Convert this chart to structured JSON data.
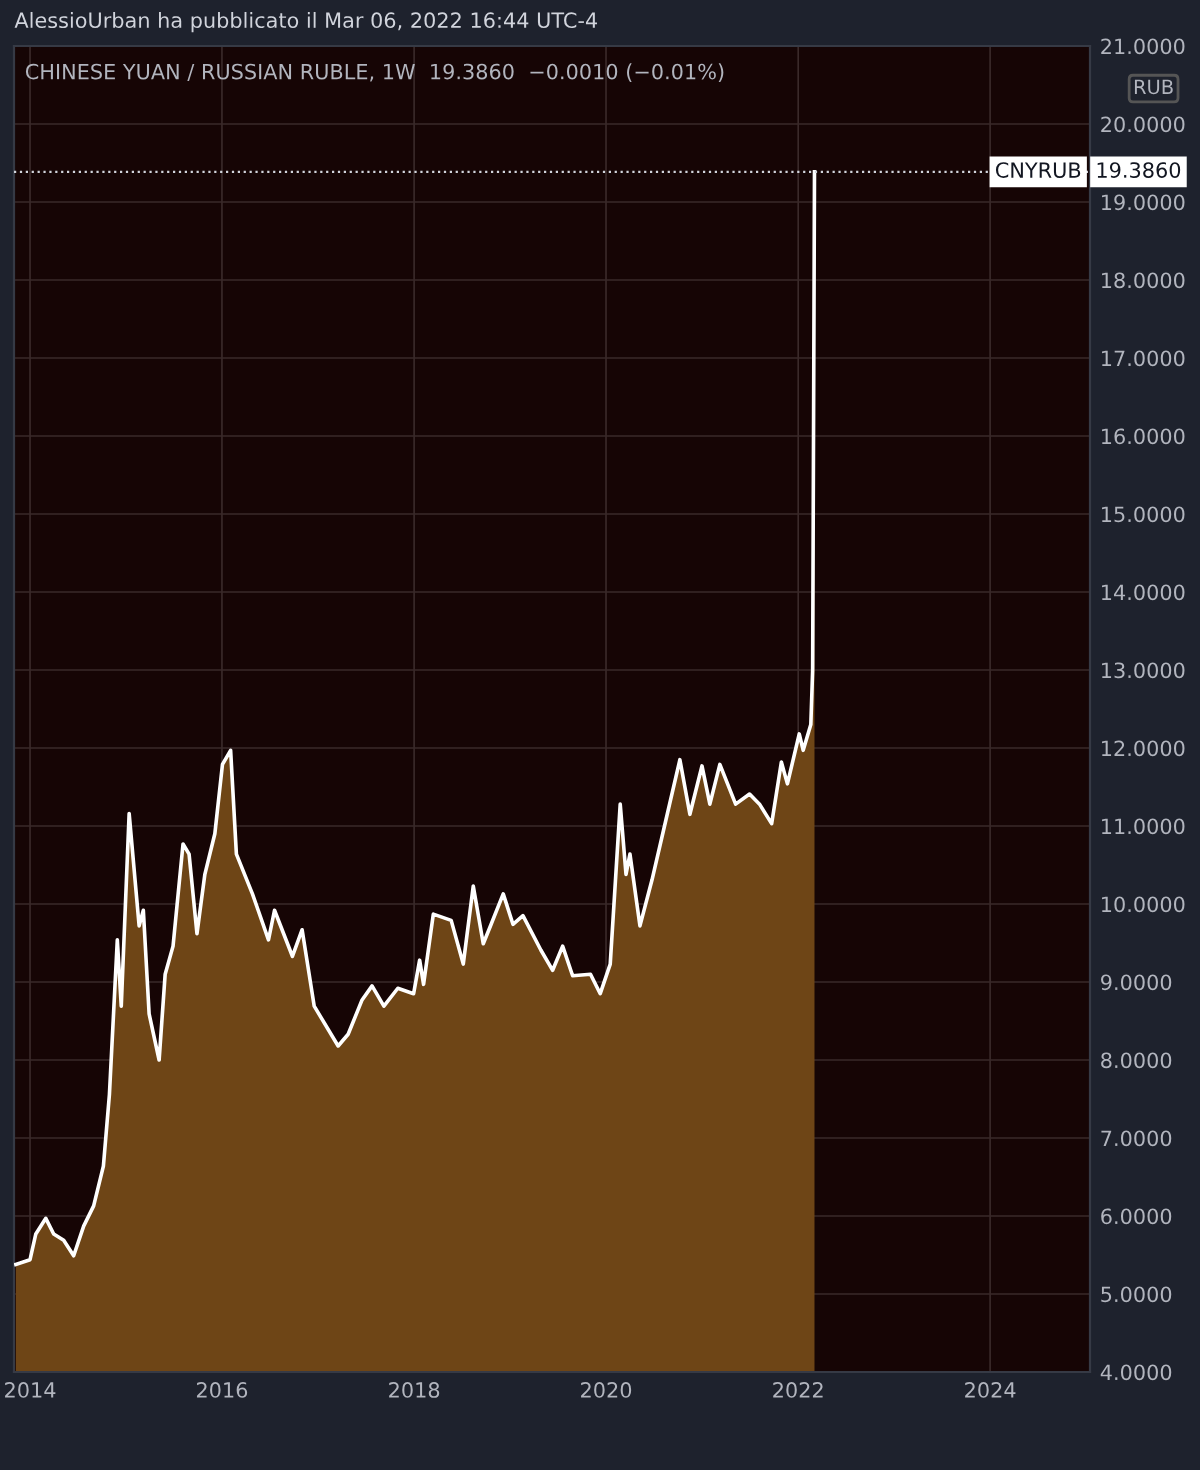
{
  "chart_data": {
    "type": "area",
    "title": "CHINESE YUAN / RUSSIAN RUBLE, 1W",
    "subtitle": "19.3860  −0.0010 (−0.01%)",
    "ylabel": "RUB",
    "annotations": [
      "AlessioUrban ha pubblicato il Mar 06, 2022 16:44 UTC-4",
      {
        "text": "CNYRUB",
        "x": "2025-01-15",
        "y": 19.386
      }
    ],
    "x": [
      "2013-11-08",
      "2014-01-01",
      "2014-01-23",
      "2014-03-02",
      "2014-04-01",
      "2014-05-09",
      "2014-06-16",
      "2014-07-24",
      "2014-08-31",
      "2014-10-07",
      "2014-10-30",
      "2014-11-29",
      "2014-12-14",
      "2015-01-13",
      "2015-02-20",
      "2015-03-08",
      "2015-03-30",
      "2015-05-07",
      "2015-05-30",
      "2015-06-29",
      "2015-08-06",
      "2015-08-29",
      "2015-09-28",
      "2015-10-28",
      "2015-12-05",
      "2016-01-03",
      "2016-02-03",
      "2016-02-25",
      "2016-04-26",
      "2016-06-26",
      "2016-07-19",
      "2016-09-25",
      "2016-11-01",
      "2016-12-17",
      "2017-03-18",
      "2017-04-25",
      "2017-06-17",
      "2017-07-25",
      "2017-09-08",
      "2017-10-31",
      "2017-12-30",
      "2018-01-22",
      "2018-02-06",
      "2018-03-15",
      "2018-05-22",
      "2018-07-07",
      "2018-08-14",
      "2018-09-21",
      "2018-10-21",
      "2018-12-06",
      "2019-01-12",
      "2019-02-19",
      "2019-04-28",
      "2019-06-12",
      "2019-07-20",
      "2019-08-27",
      "2019-11-03",
      "2019-12-10",
      "2020-01-17",
      "2020-02-24",
      "2020-03-17",
      "2020-04-01",
      "2020-05-09",
      "2020-06-24",
      "2020-08-16",
      "2020-10-08",
      "2020-11-15",
      "2020-12-31",
      "2021-01-30",
      "2021-03-09",
      "2021-05-08",
      "2021-06-30",
      "2021-08-07",
      "2021-09-22",
      "2021-10-29",
      "2021-11-21",
      "2022-01-05",
      "2022-01-20",
      "2022-02-18",
      "2022-02-25",
      "2022-03-04"
    ],
    "series": [
      {
        "color": "#6e4516",
        "values": [
          5.38,
          5.44,
          5.77,
          5.97,
          5.77,
          5.69,
          5.49,
          5.87,
          6.13,
          6.64,
          7.56,
          9.54,
          8.69,
          11.16,
          9.72,
          9.92,
          8.59,
          8.0,
          9.1,
          9.46,
          10.77,
          10.64,
          9.62,
          10.38,
          10.9,
          11.79,
          11.97,
          10.64,
          10.13,
          9.54,
          9.92,
          9.33,
          9.67,
          8.69,
          8.18,
          8.33,
          8.77,
          8.95,
          8.69,
          8.92,
          8.85,
          9.28,
          8.97,
          9.87,
          9.79,
          9.23,
          10.23,
          9.49,
          9.74,
          10.13,
          9.74,
          9.85,
          9.41,
          9.15,
          9.46,
          9.08,
          9.1,
          8.85,
          9.23,
          11.28,
          10.38,
          10.64,
          9.72,
          10.31,
          11.08,
          11.85,
          11.15,
          11.77,
          11.28,
          11.79,
          11.28,
          11.41,
          11.28,
          11.03,
          11.82,
          11.54,
          12.18,
          11.97,
          12.3,
          13.0,
          19.386
        ]
      }
    ],
    "xlim": [
      "2013-11-01",
      "2025-01-15"
    ],
    "xticks": [
      "2014",
      "2016",
      "2018",
      "2020",
      "2022",
      "2024"
    ],
    "ylim": [
      4,
      21
    ],
    "yticks": [
      {
        "value": 4,
        "label": "4.0000"
      },
      {
        "value": 5,
        "label": "5.0000"
      },
      {
        "value": 6,
        "label": "6.0000"
      },
      {
        "value": 7,
        "label": "7.0000"
      },
      {
        "value": 8,
        "label": "8.0000"
      },
      {
        "value": 9,
        "label": "9.0000"
      },
      {
        "value": 10,
        "label": "10.0000"
      },
      {
        "value": 11,
        "label": "11.0000"
      },
      {
        "value": 12,
        "label": "12.0000"
      },
      {
        "value": 13,
        "label": "13.0000"
      },
      {
        "value": 14,
        "label": "14.0000"
      },
      {
        "value": 15,
        "label": "15.0000"
      },
      {
        "value": 16,
        "label": "16.0000"
      },
      {
        "value": 17,
        "label": "17.0000"
      },
      {
        "value": 18,
        "label": "18.0000"
      },
      {
        "value": 19,
        "label": "19.0000"
      },
      {
        "value": 20,
        "label": "20.0000"
      },
      {
        "value": 21,
        "label": "21.0000"
      }
    ],
    "ref_lines": [
      {
        "axis": "y",
        "value": 19.386,
        "label": "19.3860",
        "color": "#d1d4dc",
        "line_style": "dotted"
      }
    ],
    "grid": true,
    "legend": false
  }
}
